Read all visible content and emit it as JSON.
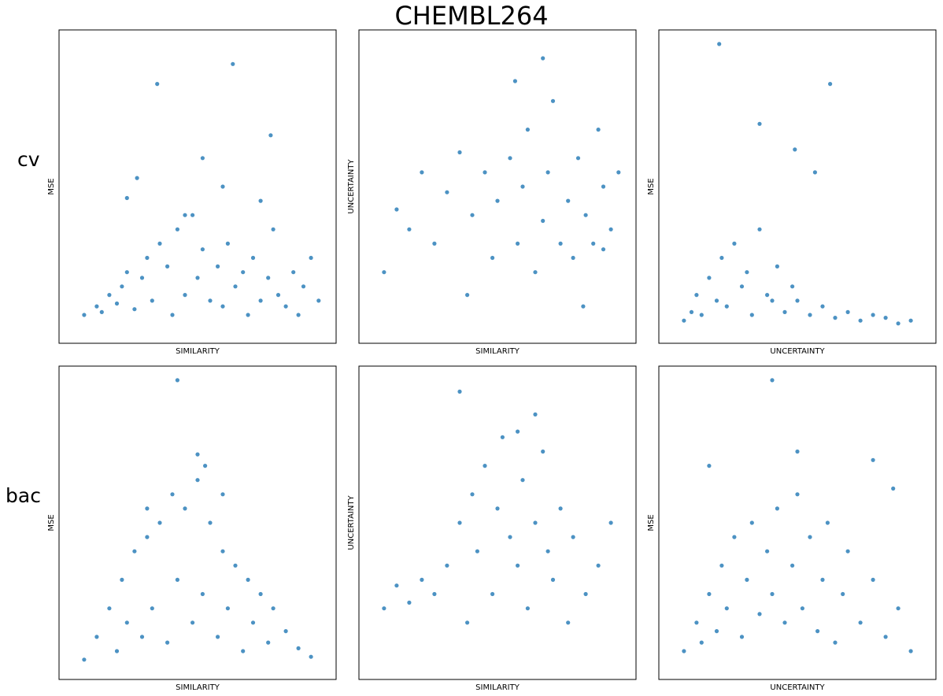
{
  "figure": {
    "title": "CHEMBL264",
    "row_labels": [
      "cv",
      "bac"
    ]
  },
  "colors": {
    "marker": "#1f77b4",
    "frame": "#000000",
    "background": "#ffffff"
  },
  "chart_data": [
    {
      "type": "scatter",
      "row": "cv",
      "xlabel": "SIMILARITY",
      "ylabel": "MSE",
      "xlim": [
        0,
        1
      ],
      "ylim": [
        0,
        1
      ],
      "grid": false,
      "legend": "none",
      "points": [
        [
          0.05,
          0.05
        ],
        [
          0.1,
          0.08
        ],
        [
          0.12,
          0.06
        ],
        [
          0.15,
          0.12
        ],
        [
          0.18,
          0.09
        ],
        [
          0.2,
          0.15
        ],
        [
          0.22,
          0.2
        ],
        [
          0.25,
          0.07
        ],
        [
          0.28,
          0.18
        ],
        [
          0.3,
          0.25
        ],
        [
          0.32,
          0.1
        ],
        [
          0.35,
          0.3
        ],
        [
          0.38,
          0.22
        ],
        [
          0.4,
          0.05
        ],
        [
          0.42,
          0.35
        ],
        [
          0.45,
          0.12
        ],
        [
          0.48,
          0.4
        ],
        [
          0.5,
          0.18
        ],
        [
          0.52,
          0.28
        ],
        [
          0.55,
          0.1
        ],
        [
          0.58,
          0.22
        ],
        [
          0.6,
          0.08
        ],
        [
          0.62,
          0.3
        ],
        [
          0.65,
          0.15
        ],
        [
          0.68,
          0.2
        ],
        [
          0.7,
          0.05
        ],
        [
          0.72,
          0.25
        ],
        [
          0.75,
          0.1
        ],
        [
          0.78,
          0.18
        ],
        [
          0.8,
          0.35
        ],
        [
          0.82,
          0.12
        ],
        [
          0.85,
          0.08
        ],
        [
          0.88,
          0.2
        ],
        [
          0.9,
          0.05
        ],
        [
          0.92,
          0.15
        ],
        [
          0.95,
          0.25
        ],
        [
          0.98,
          0.1
        ],
        [
          0.26,
          0.53
        ],
        [
          0.34,
          0.86
        ],
        [
          0.64,
          0.93
        ],
        [
          0.79,
          0.68
        ],
        [
          0.52,
          0.6
        ],
        [
          0.22,
          0.46
        ],
        [
          0.45,
          0.4
        ],
        [
          0.6,
          0.5
        ],
        [
          0.75,
          0.45
        ]
      ]
    },
    {
      "type": "scatter",
      "row": "cv",
      "xlabel": "SIMILARITY",
      "ylabel": "UNCERTAINTY",
      "xlim": [
        0,
        1
      ],
      "ylim": [
        0,
        1
      ],
      "grid": false,
      "legend": "none",
      "points": [
        [
          0.05,
          0.2
        ],
        [
          0.1,
          0.42
        ],
        [
          0.15,
          0.35
        ],
        [
          0.2,
          0.55
        ],
        [
          0.25,
          0.3
        ],
        [
          0.3,
          0.48
        ],
        [
          0.35,
          0.62
        ],
        [
          0.38,
          0.12
        ],
        [
          0.4,
          0.4
        ],
        [
          0.45,
          0.55
        ],
        [
          0.48,
          0.25
        ],
        [
          0.5,
          0.45
        ],
        [
          0.55,
          0.6
        ],
        [
          0.58,
          0.3
        ],
        [
          0.6,
          0.5
        ],
        [
          0.62,
          0.7
        ],
        [
          0.65,
          0.2
        ],
        [
          0.68,
          0.38
        ],
        [
          0.7,
          0.55
        ],
        [
          0.72,
          0.8
        ],
        [
          0.75,
          0.3
        ],
        [
          0.78,
          0.45
        ],
        [
          0.8,
          0.25
        ],
        [
          0.82,
          0.6
        ],
        [
          0.85,
          0.4
        ],
        [
          0.88,
          0.3
        ],
        [
          0.9,
          0.7
        ],
        [
          0.92,
          0.5
        ],
        [
          0.95,
          0.35
        ],
        [
          0.98,
          0.55
        ],
        [
          0.57,
          0.87
        ],
        [
          0.68,
          0.95
        ],
        [
          0.84,
          0.08
        ],
        [
          0.92,
          0.28
        ]
      ]
    },
    {
      "type": "scatter",
      "row": "cv",
      "xlabel": "UNCERTAINTY",
      "ylabel": "MSE",
      "xlim": [
        0,
        1
      ],
      "ylim": [
        0,
        1
      ],
      "grid": false,
      "legend": "none",
      "points": [
        [
          0.05,
          0.03
        ],
        [
          0.08,
          0.06
        ],
        [
          0.1,
          0.12
        ],
        [
          0.12,
          0.05
        ],
        [
          0.15,
          0.18
        ],
        [
          0.18,
          0.1
        ],
        [
          0.2,
          0.25
        ],
        [
          0.22,
          0.08
        ],
        [
          0.25,
          0.3
        ],
        [
          0.28,
          0.15
        ],
        [
          0.3,
          0.2
        ],
        [
          0.32,
          0.05
        ],
        [
          0.35,
          0.35
        ],
        [
          0.38,
          0.12
        ],
        [
          0.4,
          0.1
        ],
        [
          0.42,
          0.22
        ],
        [
          0.45,
          0.06
        ],
        [
          0.48,
          0.15
        ],
        [
          0.5,
          0.1
        ],
        [
          0.55,
          0.05
        ],
        [
          0.6,
          0.08
        ],
        [
          0.65,
          0.04
        ],
        [
          0.7,
          0.06
        ],
        [
          0.75,
          0.03
        ],
        [
          0.8,
          0.05
        ],
        [
          0.85,
          0.04
        ],
        [
          0.9,
          0.02
        ],
        [
          0.95,
          0.03
        ],
        [
          0.19,
          1.0
        ],
        [
          0.63,
          0.86
        ],
        [
          0.49,
          0.63
        ],
        [
          0.57,
          0.55
        ],
        [
          0.35,
          0.72
        ]
      ]
    },
    {
      "type": "scatter",
      "row": "bac",
      "xlabel": "SIMILARITY",
      "ylabel": "MSE",
      "xlim": [
        0,
        1
      ],
      "ylim": [
        0,
        1
      ],
      "grid": false,
      "legend": "none",
      "points": [
        [
          0.05,
          0.02
        ],
        [
          0.1,
          0.1
        ],
        [
          0.15,
          0.2
        ],
        [
          0.18,
          0.05
        ],
        [
          0.2,
          0.3
        ],
        [
          0.22,
          0.15
        ],
        [
          0.25,
          0.4
        ],
        [
          0.28,
          0.1
        ],
        [
          0.3,
          0.45
        ],
        [
          0.32,
          0.2
        ],
        [
          0.35,
          0.5
        ],
        [
          0.38,
          0.08
        ],
        [
          0.4,
          0.6
        ],
        [
          0.42,
          0.3
        ],
        [
          0.45,
          0.55
        ],
        [
          0.48,
          0.15
        ],
        [
          0.5,
          0.65
        ],
        [
          0.52,
          0.25
        ],
        [
          0.55,
          0.5
        ],
        [
          0.58,
          0.1
        ],
        [
          0.6,
          0.4
        ],
        [
          0.62,
          0.2
        ],
        [
          0.65,
          0.35
        ],
        [
          0.68,
          0.05
        ],
        [
          0.7,
          0.3
        ],
        [
          0.72,
          0.15
        ],
        [
          0.75,
          0.25
        ],
        [
          0.78,
          0.08
        ],
        [
          0.8,
          0.2
        ],
        [
          0.85,
          0.12
        ],
        [
          0.9,
          0.06
        ],
        [
          0.95,
          0.03
        ],
        [
          0.42,
          1.0
        ],
        [
          0.5,
          0.74
        ],
        [
          0.53,
          0.7
        ],
        [
          0.3,
          0.55
        ],
        [
          0.6,
          0.6
        ]
      ]
    },
    {
      "type": "scatter",
      "row": "bac",
      "xlabel": "SIMILARITY",
      "ylabel": "UNCERTAINTY",
      "xlim": [
        0,
        1
      ],
      "ylim": [
        0,
        1
      ],
      "grid": false,
      "legend": "none",
      "points": [
        [
          0.05,
          0.2
        ],
        [
          0.1,
          0.28
        ],
        [
          0.15,
          0.22
        ],
        [
          0.2,
          0.3
        ],
        [
          0.25,
          0.25
        ],
        [
          0.3,
          0.35
        ],
        [
          0.35,
          0.5
        ],
        [
          0.38,
          0.15
        ],
        [
          0.4,
          0.6
        ],
        [
          0.42,
          0.4
        ],
        [
          0.45,
          0.7
        ],
        [
          0.48,
          0.25
        ],
        [
          0.5,
          0.55
        ],
        [
          0.52,
          0.8
        ],
        [
          0.55,
          0.45
        ],
        [
          0.58,
          0.35
        ],
        [
          0.6,
          0.65
        ],
        [
          0.62,
          0.2
        ],
        [
          0.65,
          0.5
        ],
        [
          0.68,
          0.75
        ],
        [
          0.7,
          0.4
        ],
        [
          0.72,
          0.3
        ],
        [
          0.75,
          0.55
        ],
        [
          0.78,
          0.15
        ],
        [
          0.8,
          0.45
        ],
        [
          0.85,
          0.25
        ],
        [
          0.9,
          0.35
        ],
        [
          0.95,
          0.5
        ],
        [
          0.35,
          0.96
        ],
        [
          0.65,
          0.88
        ],
        [
          0.58,
          0.82
        ]
      ]
    },
    {
      "type": "scatter",
      "row": "bac",
      "xlabel": "UNCERTAINTY",
      "ylabel": "MSE",
      "xlim": [
        0,
        1
      ],
      "ylim": [
        0,
        1
      ],
      "grid": false,
      "legend": "none",
      "points": [
        [
          0.05,
          0.05
        ],
        [
          0.1,
          0.15
        ],
        [
          0.12,
          0.08
        ],
        [
          0.15,
          0.25
        ],
        [
          0.18,
          0.12
        ],
        [
          0.2,
          0.35
        ],
        [
          0.22,
          0.2
        ],
        [
          0.25,
          0.45
        ],
        [
          0.28,
          0.1
        ],
        [
          0.3,
          0.3
        ],
        [
          0.32,
          0.5
        ],
        [
          0.35,
          0.18
        ],
        [
          0.38,
          0.4
        ],
        [
          0.4,
          0.25
        ],
        [
          0.42,
          0.55
        ],
        [
          0.45,
          0.15
        ],
        [
          0.48,
          0.35
        ],
        [
          0.5,
          0.6
        ],
        [
          0.52,
          0.2
        ],
        [
          0.55,
          0.45
        ],
        [
          0.58,
          0.12
        ],
        [
          0.6,
          0.3
        ],
        [
          0.62,
          0.5
        ],
        [
          0.65,
          0.08
        ],
        [
          0.68,
          0.25
        ],
        [
          0.7,
          0.4
        ],
        [
          0.75,
          0.15
        ],
        [
          0.8,
          0.3
        ],
        [
          0.85,
          0.1
        ],
        [
          0.9,
          0.2
        ],
        [
          0.95,
          0.05
        ],
        [
          0.4,
          1.0
        ],
        [
          0.5,
          0.75
        ],
        [
          0.15,
          0.7
        ],
        [
          0.8,
          0.72
        ],
        [
          0.88,
          0.62
        ]
      ]
    }
  ]
}
